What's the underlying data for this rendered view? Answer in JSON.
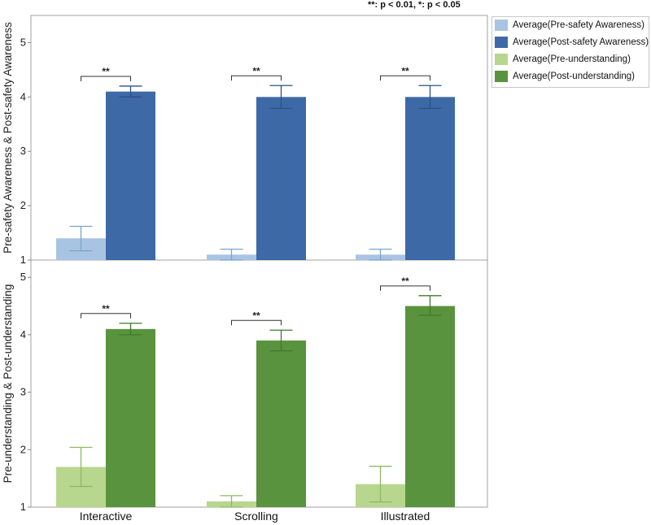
{
  "significance_note": "**: p < 0.01, *: p < 0.05",
  "legend": [
    {
      "label": "Average(Pre-safety Awareness)",
      "color": "#a9c4e2"
    },
    {
      "label": "Average(Post-safety Awareness)",
      "color": "#3d6aa6"
    },
    {
      "label": "Average(Pre-understanding)",
      "color": "#b8d78e"
    },
    {
      "label": "Average(Post-understanding)",
      "color": "#5a933d"
    }
  ],
  "chart_data": [
    {
      "type": "bar",
      "ylabel": "Pre-safety Awareness & Post-safety Awareness",
      "ylim": [
        1,
        5.5
      ],
      "yticks": [
        1,
        2,
        3,
        4,
        5
      ],
      "categories": [
        "Interactive",
        "Scrolling",
        "Illustrated"
      ],
      "series": [
        {
          "name": "Average(Pre-safety Awareness)",
          "color": "#a9c4e2",
          "err_color": "#7aa3cc",
          "values": [
            1.4,
            1.1,
            1.1
          ],
          "err_low": [
            1.17,
            1.0,
            1.0
          ],
          "err_high": [
            1.62,
            1.2,
            1.2
          ]
        },
        {
          "name": "Average(Post-safety Awareness)",
          "color": "#3d6aa6",
          "err_color": "#2b5286",
          "values": [
            4.1,
            4.0,
            4.0
          ],
          "err_low": [
            4.0,
            3.79,
            3.79
          ],
          "err_high": [
            4.2,
            4.21,
            4.21
          ]
        }
      ],
      "significance": [
        "**",
        "**",
        "**"
      ]
    },
    {
      "type": "bar",
      "ylabel": "Pre-understanding & Post-understanding",
      "ylim": [
        1,
        5.3
      ],
      "yticks": [
        1,
        2,
        3,
        4,
        5
      ],
      "categories": [
        "Interactive",
        "Scrolling",
        "Illustrated"
      ],
      "series": [
        {
          "name": "Average(Pre-understanding)",
          "color": "#b8d78e",
          "err_color": "#8fb866",
          "values": [
            1.7,
            1.1,
            1.4
          ],
          "err_low": [
            1.36,
            1.0,
            1.09
          ],
          "err_high": [
            2.04,
            1.2,
            1.71
          ]
        },
        {
          "name": "Average(Post-understanding)",
          "color": "#5a933d",
          "err_color": "#3f7a2c",
          "values": [
            4.1,
            3.9,
            4.5
          ],
          "err_low": [
            4.0,
            3.72,
            4.34
          ],
          "err_high": [
            4.2,
            4.08,
            4.68
          ]
        }
      ],
      "significance": [
        "**",
        "**",
        "**"
      ]
    }
  ]
}
